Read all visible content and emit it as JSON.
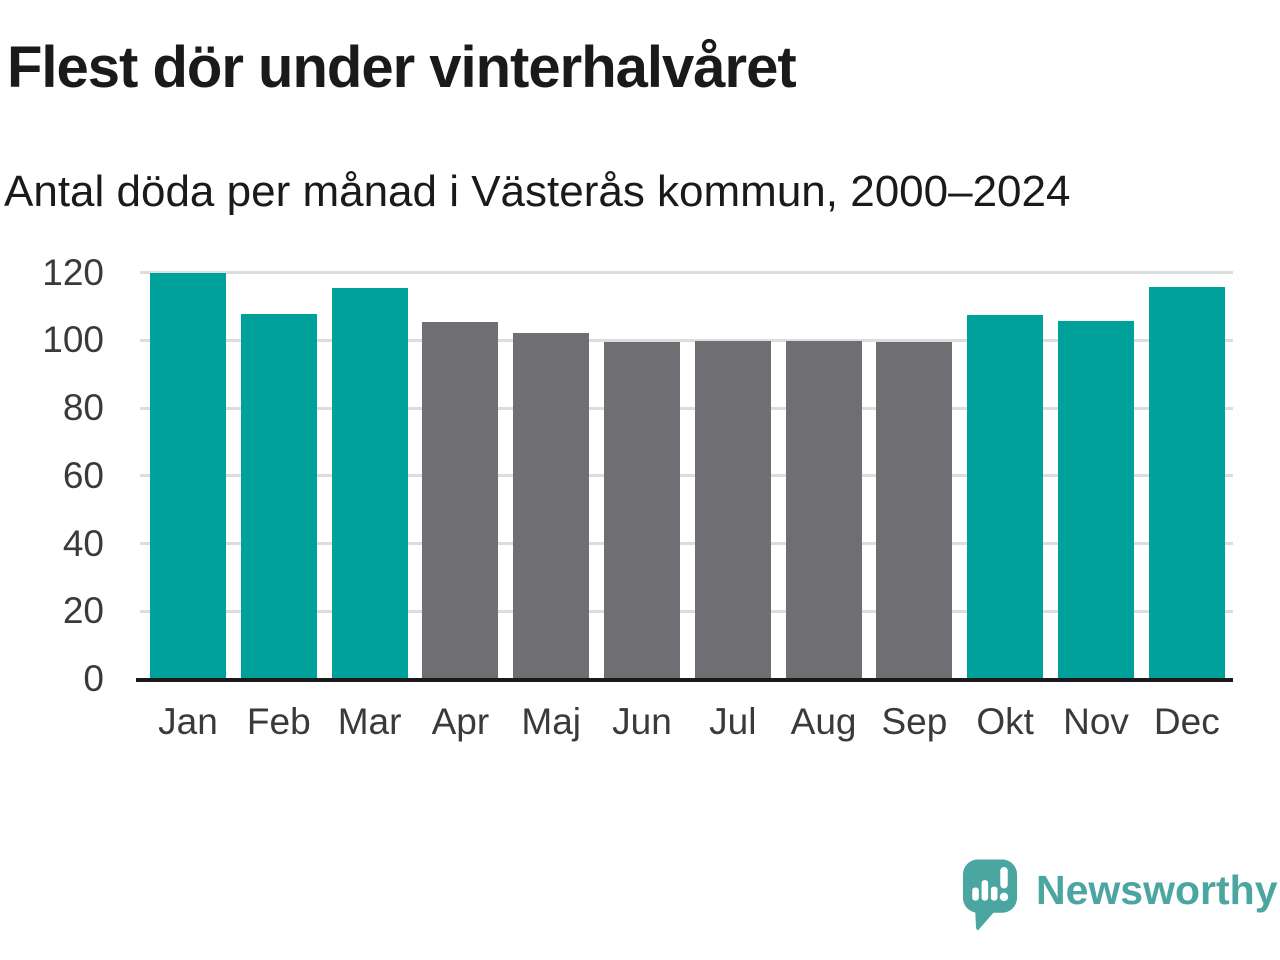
{
  "header": {
    "title": "Flest dör under vinterhalvåret",
    "subtitle": "Antal döda per månad i Västerås kommun, 2000–2024"
  },
  "chart_data": {
    "type": "bar",
    "title": "Flest dör under vinterhalvåret",
    "subtitle": "Antal döda per månad i Västerås kommun, 2000–2024",
    "categories": [
      "Jan",
      "Feb",
      "Mar",
      "Apr",
      "Maj",
      "Jun",
      "Jul",
      "Aug",
      "Sep",
      "Okt",
      "Nov",
      "Dec"
    ],
    "values": [
      120,
      107.7,
      115.3,
      105.4,
      102,
      99.4,
      99.8,
      99.8,
      99.4,
      107.4,
      105.7,
      115.7
    ],
    "highlighted_winter_months": [
      1,
      1,
      1,
      0,
      0,
      0,
      0,
      0,
      0,
      1,
      1,
      1
    ],
    "xlabel": "",
    "ylabel": "",
    "ylim": [
      0,
      120
    ],
    "yticks": [
      0,
      20,
      40,
      60,
      80,
      100,
      120
    ],
    "grid": "horizontal-only",
    "legend": "none",
    "colors": {
      "winter_bar": "#00A09B",
      "summer_bar": "#6E6E73",
      "gridline": "#dddddd",
      "axis_line": "#1a1a1a",
      "tick_label": "#3a3a3a"
    }
  },
  "branding": {
    "name": "Newsworthy",
    "color": "#4BA5A0",
    "icon": "newsworthy-speech-bubble-chart-icon"
  }
}
